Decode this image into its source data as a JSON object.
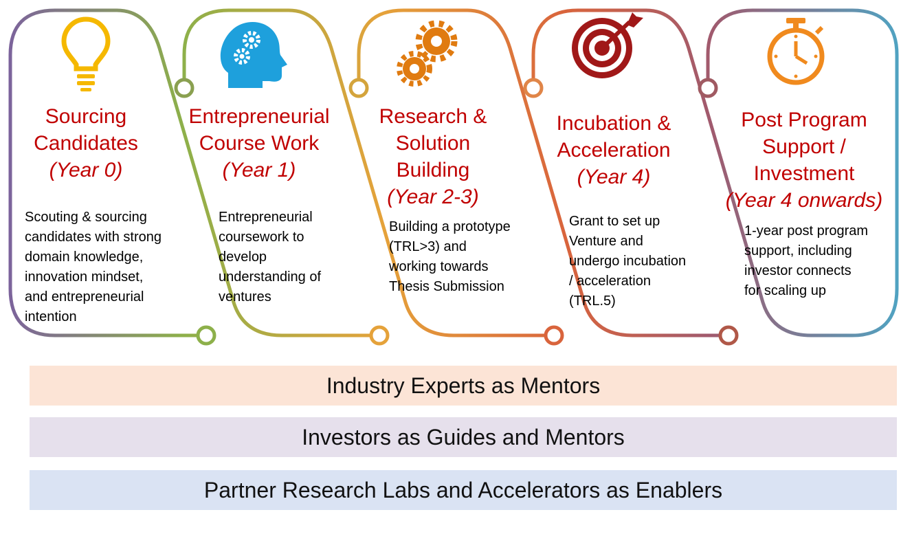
{
  "stages": [
    {
      "title_lines": [
        "Sourcing",
        "Candidates"
      ],
      "year": "(Year 0)",
      "desc_lines": [
        "Scouting & sourcing",
        "candidates with strong",
        "domain knowledge,",
        "innovation mindset,",
        "and entrepreneurial",
        "intention"
      ],
      "icon": "lightbulb-icon",
      "color": "#7b5fa0"
    },
    {
      "title_lines": [
        "Entrepreneurial",
        "Course Work"
      ],
      "year": "(Year 1)",
      "desc_lines": [
        "Entrepreneurial",
        "coursework to",
        "develop",
        "understanding of",
        "ventures"
      ],
      "icon": "head-gears-icon",
      "color": "#8db04a"
    },
    {
      "title_lines": [
        "Research &",
        "Solution",
        "Building"
      ],
      "year": "(Year 2-3)",
      "desc_lines": [
        "Building a prototype",
        "(TRL>3)  and",
        "working towards",
        "Thesis Submission"
      ],
      "icon": "gears-icon",
      "color": "#e5a23a"
    },
    {
      "title_lines": [
        "Incubation &",
        "Acceleration"
      ],
      "year": "(Year 4)",
      "desc_lines": [
        "Grant to set up",
        "Venture and",
        "undergo incubation",
        "/ acceleration",
        "(TRL.5)"
      ],
      "icon": "target-icon",
      "color": "#d9643c"
    },
    {
      "title_lines": [
        "Post Program",
        "Support /",
        "Investment"
      ],
      "year": "(Year 4 onwards)",
      "desc_lines": [
        "1-year post program",
        "support, including",
        "investor connects",
        "for scaling up"
      ],
      "icon": "stopwatch-icon",
      "color": "#4aa8c8"
    }
  ],
  "bands": [
    {
      "label": "Industry Experts as Mentors",
      "color": "#fce4d6"
    },
    {
      "label": "Investors as Guides and Mentors",
      "color": "#e6e0ec"
    },
    {
      "label": "Partner Research Labs and Accelerators as Enablers",
      "color": "#dae3f3"
    }
  ],
  "colors": {
    "title_red": "#c00000",
    "bulb_yellow": "#f5b800",
    "head_blue": "#1ea0dc",
    "gear_orange": "#e07b10",
    "target_dark": "#a01818",
    "watch_orange": "#f08a1e"
  }
}
